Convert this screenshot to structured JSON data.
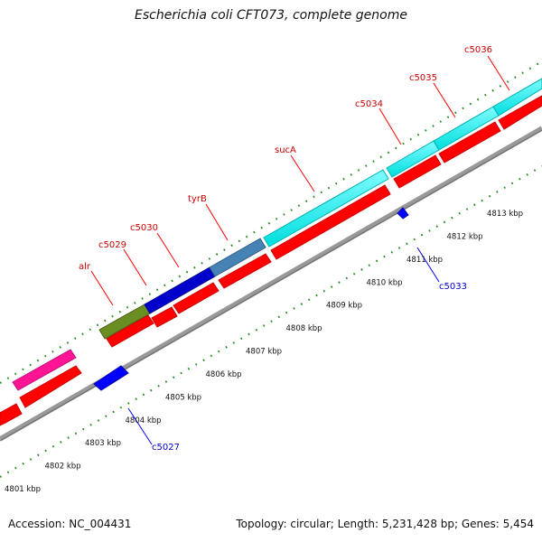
{
  "title": "Escherichia coli CFT073, complete genome",
  "footer": {
    "accession": "Accession: NC_004431",
    "summary": "Topology: circular; Length: 5,231,428 bp; Genes: 5,454"
  },
  "ruler_labels": [
    "4801 kbp",
    "4802 kbp",
    "4803 kbp",
    "4804 kbp",
    "4805 kbp",
    "4806 kbp",
    "4807 kbp",
    "4808 kbp",
    "4809 kbp",
    "4810 kbp",
    "4811 kbp",
    "4812 kbp",
    "4813 kbp"
  ],
  "gene_labels": {
    "alr": "alr",
    "c5029": "c5029",
    "c5030": "c5030",
    "tyrB": "tyrB",
    "sucA": "sucA",
    "c5034": "c5034",
    "c5035": "c5035",
    "c5036": "c5036",
    "c5033": "c5033",
    "c5027": "c5027"
  },
  "colors": {
    "cds_forward": "#ff0000",
    "cds_reverse": "#0000ff",
    "label_forward": "#cc0000",
    "label_reverse": "#0000cc",
    "backbone": "#999999",
    "ticks": "#228b22",
    "cyan_gene": "#00ffff",
    "magenta_gene": "#ff1493",
    "olive_gene": "#6b8e23",
    "steel_gene": "#4682b4",
    "blue_gene": "#0000cd"
  }
}
